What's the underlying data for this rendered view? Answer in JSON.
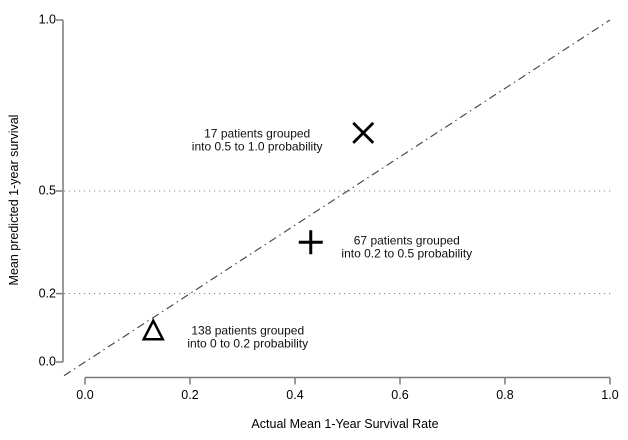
{
  "figure": {
    "background": "#ffffff",
    "text_color": "#000000",
    "axis_color": "#7a7a7a",
    "grid_color": "#8c8c8c",
    "reference_line_color": "#4d4d4d",
    "marker_color": "#000000"
  },
  "chart_data": {
    "type": "scatter",
    "title": "",
    "xlabel": "Actual Mean 1-Year Survival Rate",
    "ylabel": "Mean predicted 1-year survival",
    "xlim": [
      0.0,
      1.0
    ],
    "ylim": [
      0.0,
      1.0
    ],
    "x_ticks": [
      0.0,
      0.2,
      0.4,
      0.6,
      0.8,
      1.0
    ],
    "x_tick_labels": [
      "0.0",
      "0.2",
      "0.4",
      "0.6",
      "0.8",
      "1.0"
    ],
    "y_ticks": [
      1.0,
      0.5,
      0.2,
      0.0
    ],
    "y_tick_labels": [
      "1.0",
      "0.5",
      "0.2",
      "0.0"
    ],
    "grid": {
      "style": "dotted",
      "y_values": [
        0.5,
        0.2
      ]
    },
    "reference_line": {
      "style": "dash-dot",
      "from": [
        -0.04,
        -0.04
      ],
      "to": [
        1.0,
        1.0
      ]
    },
    "legend": "none",
    "points": [
      {
        "marker": "x",
        "x": 0.53,
        "y": 0.67,
        "label_line1": "17 patients grouped",
        "label_line2": "into 0.5 to 1.0 probability",
        "label_x": 0.328,
        "label_y": 0.649
      },
      {
        "marker": "plus",
        "x": 0.43,
        "y": 0.35,
        "label_line1": "67 patients grouped",
        "label_line2": "into 0.2 to 0.5 probability",
        "label_x": 0.613,
        "label_y": 0.336
      },
      {
        "marker": "triangle",
        "x": 0.13,
        "y": 0.09,
        "label_line1": "138 patients grouped",
        "label_line2": "into 0 to 0.2 probability",
        "label_x": 0.31,
        "label_y": 0.073
      }
    ]
  }
}
